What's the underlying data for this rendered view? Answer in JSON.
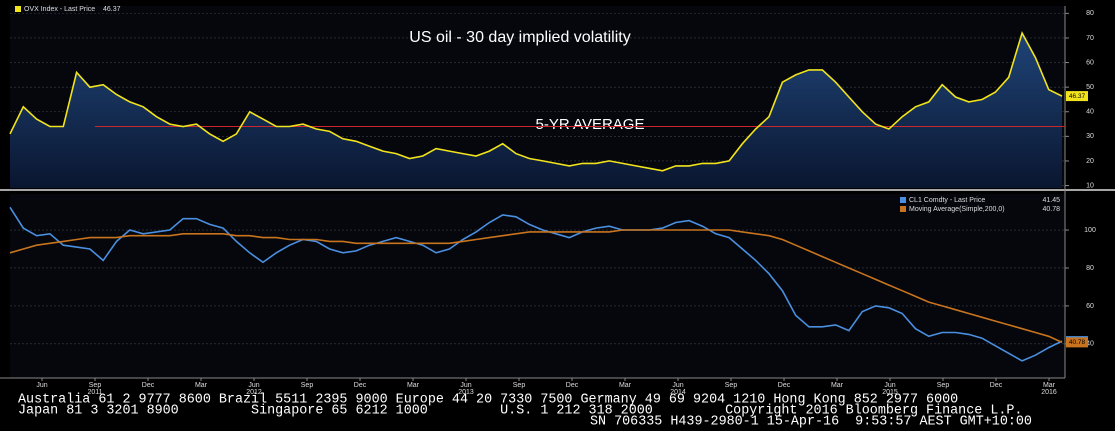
{
  "chart_data": [
    {
      "type": "line",
      "title": "US oil - 30 day implied volatility",
      "annotation": "5-YR AVERAGE",
      "average": 34,
      "average_color": "#c8282d",
      "ylim": [
        9,
        83
      ],
      "yticks": [
        10,
        20,
        30,
        40,
        50,
        60,
        70,
        80
      ],
      "grid": true,
      "area": true,
      "series": [
        {
          "name": "OVX Index - Last Price",
          "color": "#f2e41c",
          "last_label": "46.37",
          "values": [
            31,
            42,
            37,
            34,
            34,
            56,
            50,
            51,
            47,
            44,
            42,
            38,
            35,
            34,
            35,
            31,
            28,
            31,
            40,
            37,
            34,
            34,
            35,
            33,
            32,
            29,
            28,
            26,
            24,
            23,
            21,
            22,
            25,
            24,
            23,
            22,
            24,
            27,
            23,
            21,
            20,
            19,
            18,
            19,
            19,
            20,
            19,
            18,
            17,
            16,
            18,
            18,
            19,
            19,
            20,
            27,
            33,
            38,
            52,
            55,
            57,
            57,
            52,
            46,
            40,
            35,
            33,
            38,
            42,
            44,
            51,
            46,
            44,
            45,
            48,
            54,
            72,
            62,
            49,
            46.37
          ]
        }
      ]
    },
    {
      "type": "line",
      "ylim": [
        22,
        119
      ],
      "yticks": [
        40,
        60,
        80,
        100
      ],
      "grid": true,
      "area": false,
      "series": [
        {
          "name": "CL1 Comdty - Last Price",
          "color": "#4a8fe0",
          "last_label": "41.45",
          "values": [
            112,
            101,
            97,
            98,
            92,
            91,
            90,
            84,
            94,
            100,
            98,
            99,
            100,
            106,
            106,
            103,
            101,
            94,
            88,
            83,
            88,
            92,
            95,
            94,
            90,
            88,
            89,
            92,
            94,
            96,
            94,
            92,
            88,
            90,
            95,
            99,
            104,
            108,
            107,
            103,
            100,
            98,
            96,
            99,
            101,
            102,
            100,
            100,
            100,
            101,
            104,
            105,
            102,
            98,
            96,
            90,
            84,
            77,
            68,
            55,
            49,
            49,
            50,
            47,
            57,
            60,
            59,
            56,
            48,
            44,
            46,
            46,
            45,
            43,
            39,
            35,
            31,
            34,
            38,
            41.45
          ]
        },
        {
          "name": "Moving Average(Simple,200,0)",
          "color": "#c8741e",
          "last_label": "40.78",
          "values": [
            88,
            90,
            92,
            93,
            94,
            95,
            96,
            96,
            96,
            97,
            97,
            97,
            97,
            98,
            98,
            98,
            98,
            97,
            97,
            96,
            96,
            95,
            95,
            95,
            94,
            94,
            93,
            93,
            93,
            93,
            93,
            93,
            93,
            93,
            94,
            95,
            96,
            97,
            98,
            99,
            99,
            99,
            99,
            99,
            99,
            99,
            100,
            100,
            100,
            100,
            100,
            100,
            100,
            100,
            100,
            99,
            98,
            97,
            95,
            92,
            89,
            86,
            83,
            80,
            77,
            74,
            71,
            68,
            65,
            62,
            60,
            58,
            56,
            54,
            52,
            50,
            48,
            46,
            44,
            40.78
          ]
        }
      ]
    }
  ],
  "x_axis": {
    "months": [
      "Jun",
      "Sep",
      "Dec",
      "Mar",
      "Jun",
      "Sep",
      "Dec",
      "Mar",
      "Jun",
      "Sep",
      "Dec",
      "Mar",
      "Jun",
      "Sep",
      "Dec",
      "Mar",
      "Jun",
      "Sep",
      "Dec",
      "Mar"
    ],
    "years": [
      null,
      "2011",
      null,
      null,
      "2012",
      null,
      null,
      null,
      "2013",
      null,
      null,
      null,
      "2014",
      null,
      null,
      null,
      "2015",
      null,
      null,
      "2016"
    ]
  },
  "footer": [
    "Australia 61 2 9777 8600 Brazil 5511 2395 9000 Europe 44 20 7330 7500 Germany 49 69 9204 1210 Hong Kong 852 2977 6000",
    "Japan 81 3 3201 8900         Singapore 65 6212 1000         U.S. 1 212 318 2000         Copyright 2016 Bloomberg Finance L.P.",
    "SN 706335 H439-2980-1 15-Apr-16  9:53:57 AEST GMT+10:00"
  ]
}
